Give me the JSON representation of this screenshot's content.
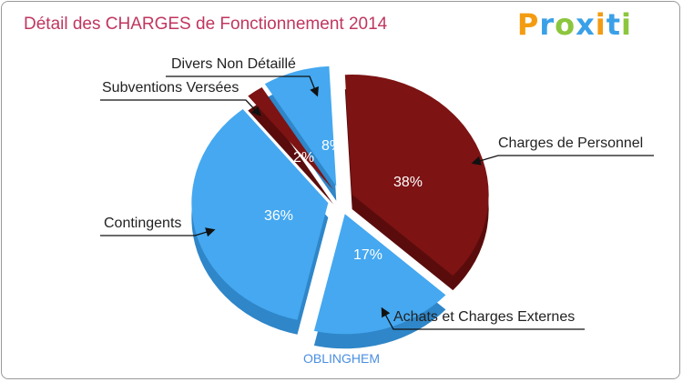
{
  "title": "Détail des CHARGES de Fonctionnement 2014",
  "logo": {
    "text": "Proxiti",
    "letters": [
      {
        "ch": "P",
        "color": "#f39c12"
      },
      {
        "ch": "r",
        "color": "#3aa0e8"
      },
      {
        "ch": "o",
        "color": "#8cc63e"
      },
      {
        "ch": "x",
        "color": "#3aa0e8"
      },
      {
        "ch": "i",
        "color": "#f39c12"
      },
      {
        "ch": "t",
        "color": "#3aa0e8"
      },
      {
        "ch": "i",
        "color": "#8cc63e"
      }
    ]
  },
  "footer": "OBLINGHEM",
  "chart_data": {
    "type": "pie",
    "title": "Détail des CHARGES de Fonctionnement 2014",
    "categories": [
      "Charges de Personnel",
      "Achats et Charges Externes",
      "Contingents",
      "Subventions Versées",
      "Divers Non Détaillé"
    ],
    "values": [
      38,
      17,
      36,
      2,
      8
    ],
    "labels": [
      "38%",
      "17%",
      "36%",
      "2%",
      "8%"
    ],
    "colors": [
      "#7d1313",
      "#45a8f0",
      "#45a8f0",
      "#7d1313",
      "#45a8f0"
    ],
    "side_colors": [
      "#5a0c0c",
      "#2f86c8",
      "#2f86c8",
      "#5a0c0c",
      "#2f86c8"
    ]
  }
}
